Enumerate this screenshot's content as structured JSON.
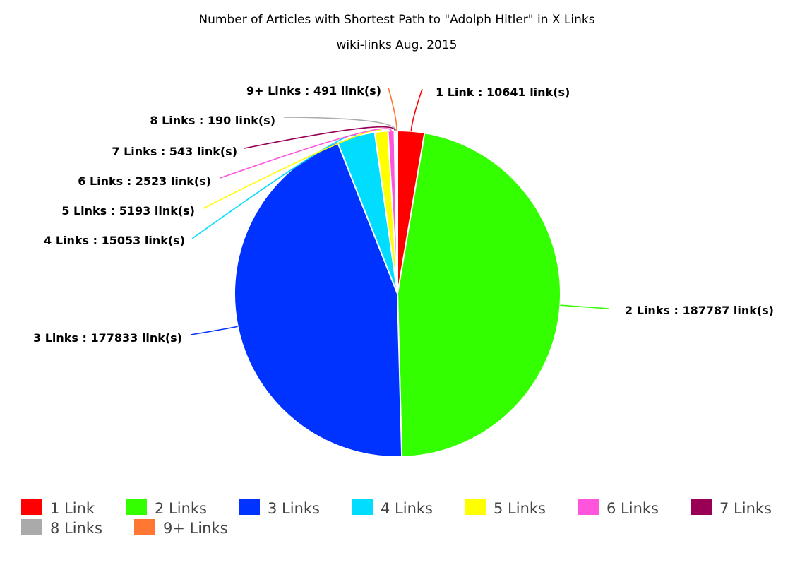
{
  "chart_data": {
    "type": "pie",
    "title": "Number of Articles with Shortest Path to \"Adolph Hitler\" in X Links",
    "subtitle": "wiki-links Aug. 2015",
    "label_format": "{name} : {value} link(s)",
    "start_angle_deg": 0,
    "direction": "clockwise",
    "legend_placement": "bottom",
    "slices": [
      {
        "name": "1 Link",
        "value": 10641,
        "color": "#ff0000"
      },
      {
        "name": "2 Links",
        "value": 187787,
        "color": "#33ff00"
      },
      {
        "name": "3 Links",
        "value": 177833,
        "color": "#0033ff"
      },
      {
        "name": "4 Links",
        "value": 15053,
        "color": "#00ddff"
      },
      {
        "name": "5 Links",
        "value": 5193,
        "color": "#ffff00"
      },
      {
        "name": "6 Links",
        "value": 2523,
        "color": "#ff55dd"
      },
      {
        "name": "7 Links",
        "value": 543,
        "color": "#990055"
      },
      {
        "name": "8 Links",
        "value": 190,
        "color": "#aaaaaa"
      },
      {
        "name": "9+ Links",
        "value": 491,
        "color": "#ff7733"
      }
    ]
  }
}
